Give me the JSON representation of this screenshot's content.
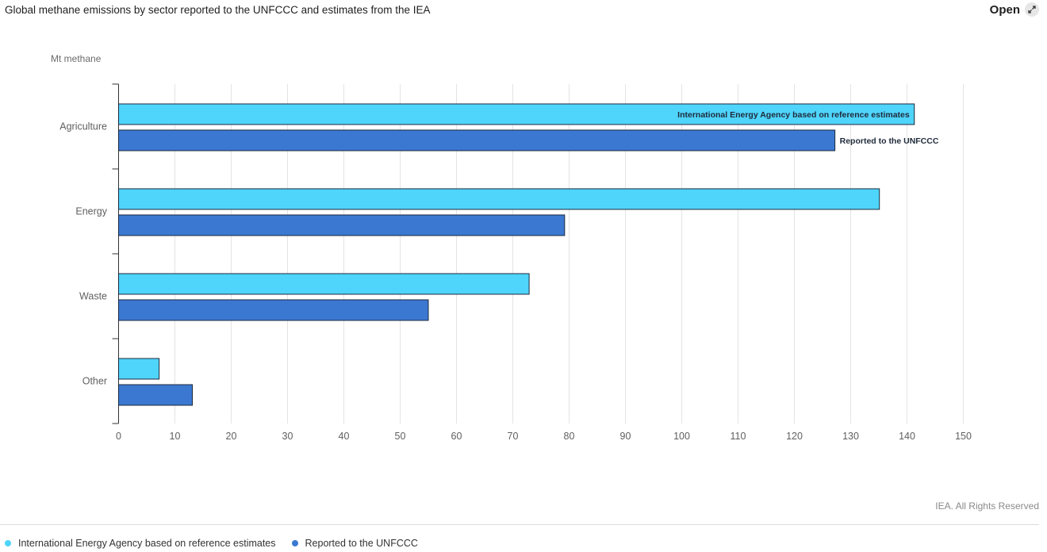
{
  "header": {
    "title": "Global methane emissions by sector reported to the UNFCCC and estimates from the IEA",
    "open_label": "Open",
    "open_icon": "external-expand-icon"
  },
  "credit": "IEA. All Rights Reserved",
  "chart_data": {
    "type": "bar",
    "orientation": "horizontal",
    "unit_label": "Mt methane",
    "categories": [
      "Agriculture",
      "Energy",
      "Waste",
      "Other"
    ],
    "series": [
      {
        "name": "International Energy Agency based on reference estimates",
        "color": "#4fd4fb",
        "values": [
          141.3,
          135.1,
          72.9,
          7.2
        ]
      },
      {
        "name": "Reported to the UNFCCC",
        "color": "#3b78d1",
        "values": [
          127.2,
          79.2,
          55.0,
          13.1
        ]
      }
    ],
    "bar_labels": [
      {
        "series": 0,
        "category": 0,
        "text": "International Energy Agency based on reference estimates",
        "position": "inside-end"
      },
      {
        "series": 1,
        "category": 0,
        "text": "Reported to the UNFCCC",
        "position": "outside-end"
      }
    ],
    "xlim": [
      0,
      150
    ],
    "xticks": [
      0,
      10,
      20,
      30,
      40,
      50,
      60,
      70,
      80,
      90,
      100,
      110,
      120,
      130,
      140,
      150
    ],
    "grid": true,
    "legend_position": "bottom-left"
  }
}
